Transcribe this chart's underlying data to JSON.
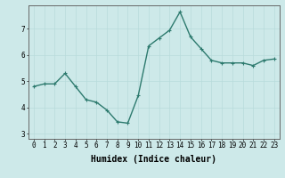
{
  "x": [
    0,
    1,
    2,
    3,
    4,
    5,
    6,
    7,
    8,
    9,
    10,
    11,
    12,
    13,
    14,
    15,
    16,
    17,
    18,
    19,
    20,
    21,
    22,
    23
  ],
  "y": [
    4.8,
    4.9,
    4.9,
    5.3,
    4.8,
    4.3,
    4.2,
    3.9,
    3.45,
    3.4,
    4.45,
    6.35,
    6.65,
    6.95,
    7.65,
    6.7,
    6.25,
    5.8,
    5.7,
    5.7,
    5.7,
    5.6,
    5.8,
    5.85
  ],
  "line_color": "#2d7a6e",
  "marker": "+",
  "marker_size": 3,
  "linewidth": 1.0,
  "xlabel": "Humidex (Indice chaleur)",
  "xlabel_fontsize": 7,
  "xlim": [
    -0.5,
    23.5
  ],
  "ylim": [
    2.8,
    7.9
  ],
  "yticks": [
    3,
    4,
    5,
    6,
    7
  ],
  "xticks": [
    0,
    1,
    2,
    3,
    4,
    5,
    6,
    7,
    8,
    9,
    10,
    11,
    12,
    13,
    14,
    15,
    16,
    17,
    18,
    19,
    20,
    21,
    22,
    23
  ],
  "tick_fontsize": 5.5,
  "bg_color": "#cde9e9",
  "grid_color": "#b8dcdc",
  "spine_color": "#666666"
}
